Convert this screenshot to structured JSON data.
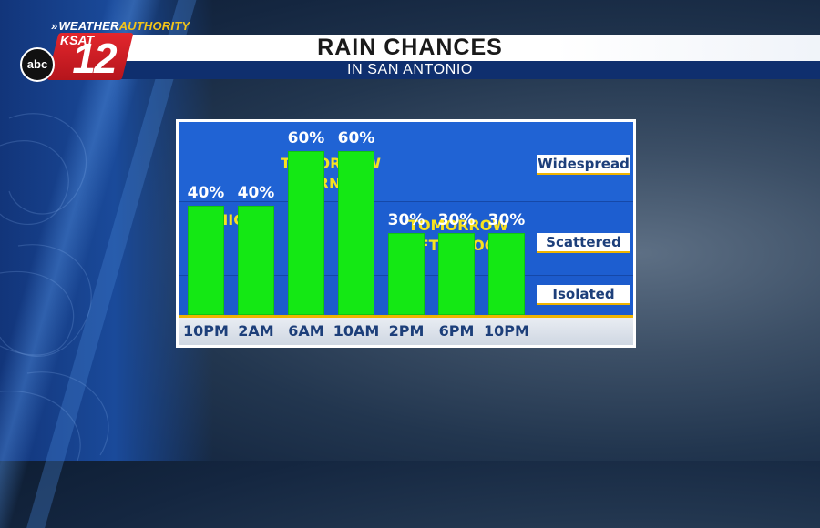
{
  "header": {
    "brand_prefix": "WEATHER",
    "brand_accent": "AUTHORITY",
    "station_name": "KSAT",
    "channel_number": "12",
    "network": "abc",
    "title": "RAIN CHANCES",
    "subtitle": "IN SAN ANTONIO"
  },
  "colors": {
    "bar": "#14e814",
    "annotation": "#f7e21f",
    "panel_blue": "#1f62d6",
    "axis_accent": "#f0b400",
    "title_bar": "#ffffff",
    "subtitle_bar": "#0f2f6e"
  },
  "chart_data": {
    "type": "bar",
    "title": "RAIN CHANCES",
    "subtitle": "IN SAN ANTONIO",
    "categories": [
      "10PM",
      "2AM",
      "6AM",
      "10AM",
      "2PM",
      "6PM",
      "10PM"
    ],
    "values": [
      40,
      40,
      60,
      60,
      30,
      30,
      30
    ],
    "value_labels": [
      "40%",
      "40%",
      "60%",
      "60%",
      "30%",
      "30%",
      "30%"
    ],
    "unit": "%",
    "ylim": [
      0,
      100
    ],
    "grid": false,
    "period_annotations": [
      {
        "text": "TONIGHT",
        "covers": [
          0,
          1
        ]
      },
      {
        "text": "TOMORROW MORNING",
        "covers": [
          2,
          3
        ]
      },
      {
        "text": "TOMORROW AFTERNOON",
        "covers": [
          4,
          5,
          6
        ]
      }
    ],
    "coverage_categories": [
      "Widespread",
      "Scattered",
      "Isolated"
    ]
  }
}
